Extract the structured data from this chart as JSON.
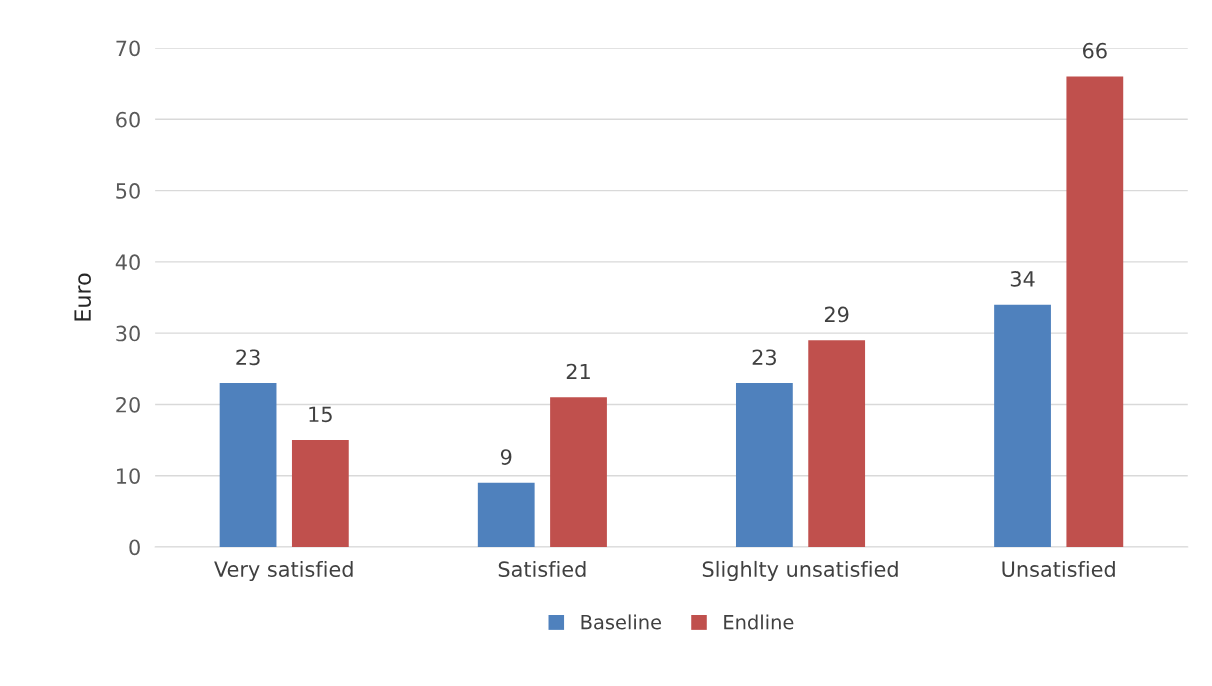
{
  "chart_data": {
    "type": "bar",
    "ylabel": "Euro",
    "categories": [
      "Very satisfied",
      "Satisfied",
      "Slighlty unsatisfied",
      "Unsatisfied"
    ],
    "series": [
      {
        "name": "Baseline",
        "color": "#4f81bd",
        "values": [
          23,
          9,
          23,
          34
        ]
      },
      {
        "name": "Endline",
        "color": "#c0504d",
        "values": [
          15,
          21,
          29,
          66
        ]
      }
    ],
    "ylim": [
      0,
      70
    ],
    "yticks": [
      0,
      10,
      20,
      30,
      40,
      50,
      60,
      70
    ],
    "grid": "y",
    "legend": "bottom",
    "data_labels": true
  }
}
